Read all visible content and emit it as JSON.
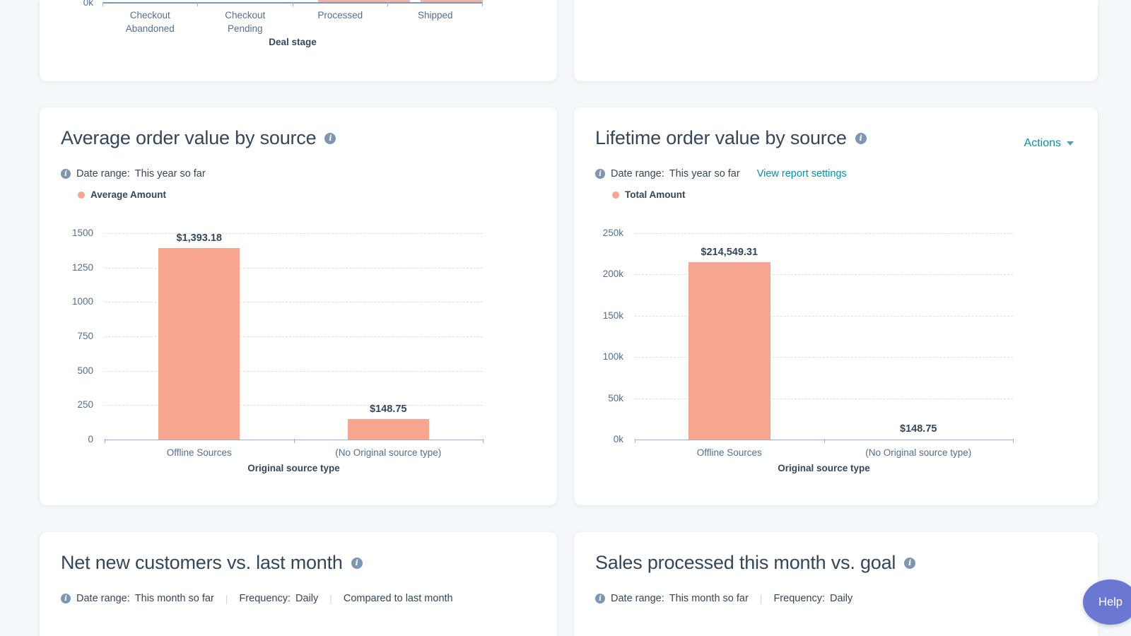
{
  "colors": {
    "page_background": "#f5f8fa",
    "bar": "#f7a58f",
    "link": "#0091ae",
    "title_text": "#33475b",
    "axis_text": "#516f90",
    "help_button": "#6a78d4"
  },
  "help_button": {
    "label": "Help"
  },
  "cards": {
    "deal_stage_partial": {
      "visible_y_tick": "0k",
      "xlabel": "Deal stage"
    },
    "avg_order": {
      "title": "Average order value by source",
      "meta": {
        "date_range_label": "Date range:",
        "date_range_value": "This year so far"
      },
      "legend": "Average Amount"
    },
    "lifetime_order": {
      "title": "Lifetime order value by source",
      "actions_label": "Actions",
      "meta": {
        "date_range_label": "Date range:",
        "date_range_value": "This year so far",
        "settings_link": "View report settings"
      },
      "legend": "Total Amount"
    },
    "net_new": {
      "title": "Net new customers vs. last month",
      "meta": {
        "date_range_label": "Date range:",
        "date_range_value": "This month so far",
        "frequency_label": "Frequency:",
        "frequency_value": "Daily",
        "compare_text": "Compared to last month"
      }
    },
    "sales_goal": {
      "title": "Sales processed this month vs. goal",
      "meta": {
        "date_range_label": "Date range:",
        "date_range_value": "This month so far",
        "frequency_label": "Frequency:",
        "frequency_value": "Daily"
      }
    }
  },
  "chart_data": [
    {
      "id": "deal-stage-cropped",
      "type": "bar",
      "cropped": true,
      "categories": [
        "Checkout Abandoned",
        "Checkout Pending",
        "Processed",
        "Shipped"
      ],
      "xlabel": "Deal stage",
      "ytick_labels": [
        "0k"
      ]
    },
    {
      "id": "average-order-value-by-source",
      "type": "bar",
      "title": "Average order value by source",
      "series_name": "Average Amount",
      "categories": [
        "Offline Sources",
        "(No Original source type)"
      ],
      "values": [
        1393.18,
        148.75
      ],
      "data_labels": [
        "$1,393.18",
        "$148.75"
      ],
      "xlabel": "Original source type",
      "ylim": [
        0,
        1500
      ],
      "yticks": [
        0,
        250,
        500,
        750,
        1000,
        1250,
        1500
      ],
      "ytick_labels": [
        "0",
        "250",
        "500",
        "750",
        "1000",
        "1250",
        "1500"
      ],
      "grid": "horizontal-dashed",
      "legend_position": "top-left",
      "date_range": "This year so far"
    },
    {
      "id": "lifetime-order-value-by-source",
      "type": "bar",
      "title": "Lifetime order value by source",
      "series_name": "Total Amount",
      "categories": [
        "Offline Sources",
        "(No Original source type)"
      ],
      "values": [
        214549.31,
        148.75
      ],
      "data_labels": [
        "$214,549.31",
        "$148.75"
      ],
      "xlabel": "Original source type",
      "ylim": [
        0,
        250000
      ],
      "yticks": [
        0,
        50000,
        100000,
        150000,
        200000,
        250000
      ],
      "ytick_labels": [
        "0k",
        "50k",
        "100k",
        "150k",
        "200k",
        "250k"
      ],
      "grid": "horizontal-dashed",
      "legend_position": "top-left",
      "date_range": "This year so far"
    }
  ]
}
